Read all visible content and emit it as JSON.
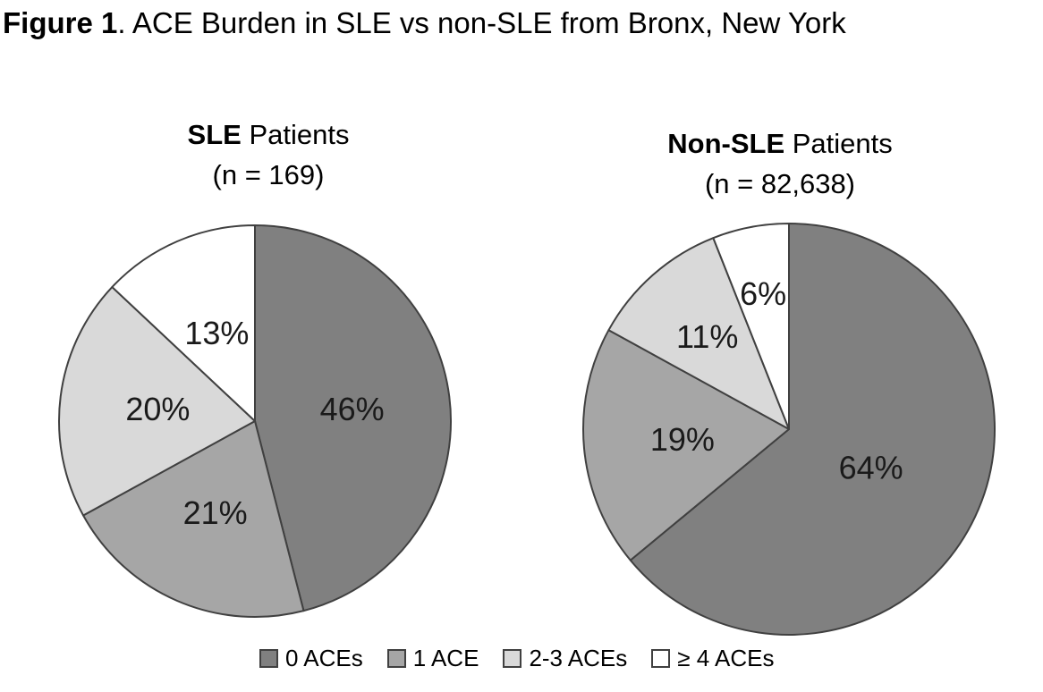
{
  "figure_title": {
    "bold": "Figure 1",
    "rest": ". ACE Burden in SLE vs non-SLE from Bronx, New York"
  },
  "palette": {
    "slice_colors": [
      "#808080",
      "#A6A6A6",
      "#D9D9D9",
      "#FFFFFF"
    ],
    "outline": "#404040",
    "label_color": "#1A1A1A"
  },
  "legend": {
    "items": [
      {
        "label": "0 ACEs",
        "color": "#808080"
      },
      {
        "label": "1 ACE",
        "color": "#A6A6A6"
      },
      {
        "label": "2-3 ACEs",
        "color": "#D9D9D9"
      },
      {
        "label": "≥ 4 ACEs",
        "color": "#FFFFFF"
      }
    ]
  },
  "chart_data": [
    {
      "type": "pie",
      "title": {
        "bold": "SLE",
        "rest": " Patients"
      },
      "subtitle": "(n = 169)",
      "categories": [
        "0 ACEs",
        "1 ACE",
        "2-3 ACEs",
        "≥ 4 ACEs"
      ],
      "values_percent": [
        46,
        21,
        20,
        13
      ],
      "slice_labels": [
        "46%",
        "21%",
        "20%",
        "13%"
      ],
      "colors": [
        "#808080",
        "#A6A6A6",
        "#D9D9D9",
        "#FFFFFF"
      ],
      "start_angle_deg": 0,
      "direction": "clockwise",
      "legend_position": "bottom",
      "label_radius_frac": [
        0.5,
        0.51,
        0.5,
        0.49
      ]
    },
    {
      "type": "pie",
      "title": {
        "bold": "Non-SLE",
        "rest": " Patients"
      },
      "subtitle": "(n = 82,638)",
      "categories": [
        "0 ACEs",
        "1 ACE",
        "2-3 ACEs",
        "≥ 4 ACEs"
      ],
      "values_percent": [
        64,
        19,
        11,
        6
      ],
      "slice_labels": [
        "64%",
        "19%",
        "11%",
        "6%"
      ],
      "colors": [
        "#808080",
        "#A6A6A6",
        "#D9D9D9",
        "#FFFFFF"
      ],
      "start_angle_deg": 0,
      "direction": "clockwise",
      "legend_position": "bottom",
      "label_radius_frac": [
        0.44,
        0.52,
        0.6,
        0.67
      ]
    }
  ]
}
